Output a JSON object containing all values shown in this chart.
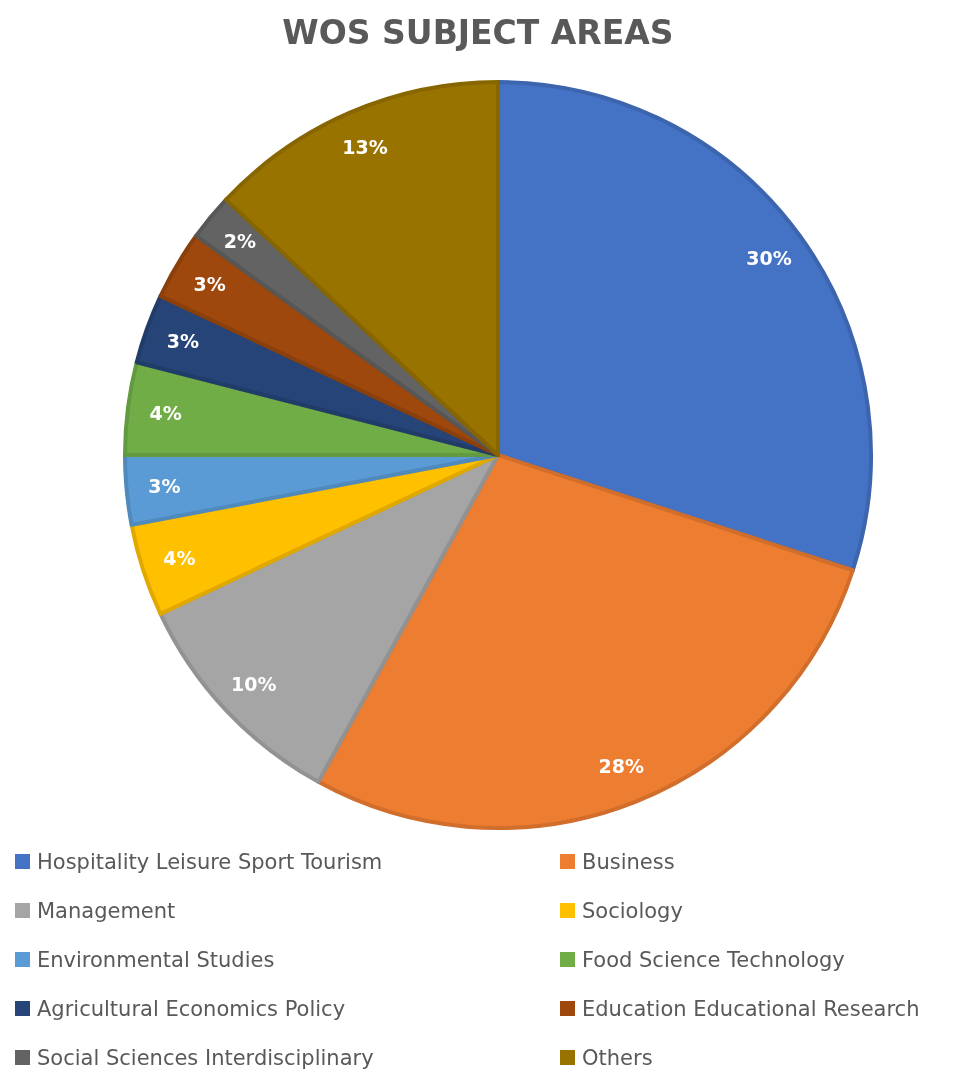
{
  "chart_data": {
    "type": "pie",
    "title": "WOS SUBJECT AREAS",
    "categories": [
      "Hospitality Leisure Sport Tourism",
      "Business",
      "Management",
      "Sociology",
      "Environmental Studies",
      "Food Science Technology",
      "Agricultural Economics Policy",
      "Education Educational Research",
      "Social Sciences Interdisciplinary",
      "Others"
    ],
    "values": [
      30,
      28,
      10,
      4,
      3,
      4,
      3,
      3,
      2,
      13
    ],
    "value_labels": [
      "30%",
      "28%",
      "10%",
      "4%",
      "3%",
      "4%",
      "3%",
      "3%",
      "2%",
      "13%"
    ],
    "colors": [
      "#4472c4",
      "#ed7d31",
      "#a5a5a5",
      "#ffc000",
      "#5b9bd5",
      "#70ad47",
      "#264478",
      "#9e480e",
      "#636363",
      "#997300"
    ],
    "legend": "bottom"
  }
}
